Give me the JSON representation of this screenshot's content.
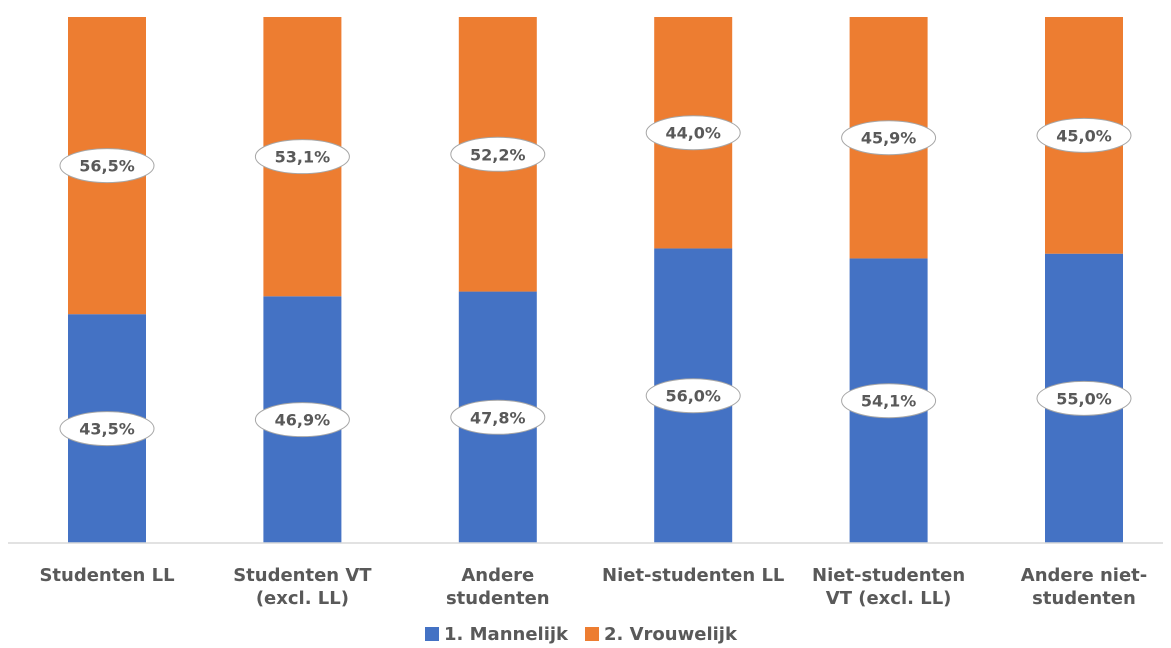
{
  "chart_data": {
    "type": "bar",
    "stacked": true,
    "percent_stacked": true,
    "categories": [
      [
        "Studenten LL"
      ],
      [
        "Studenten VT",
        "(excl. LL)"
      ],
      [
        "Andere",
        "studenten"
      ],
      [
        "Niet-studenten LL"
      ],
      [
        "Niet-studenten",
        "VT (excl. LL)"
      ],
      [
        "Andere niet-",
        "studenten"
      ]
    ],
    "series": [
      {
        "name": "1. Mannelijk",
        "color": "#4472C4",
        "values": [
          43.5,
          46.9,
          47.8,
          56.0,
          54.1,
          55.0
        ],
        "labels": [
          "43,5%",
          "46,9%",
          "47,8%",
          "56,0%",
          "54,1%",
          "55,0%"
        ]
      },
      {
        "name": "2. Vrouwelijk",
        "color": "#ED7D31",
        "values": [
          56.5,
          53.1,
          52.2,
          44.0,
          45.9,
          45.0
        ],
        "labels": [
          "56,5%",
          "53,1%",
          "52,2%",
          "44,0%",
          "45,9%",
          "45,0%"
        ]
      }
    ],
    "ylim": [
      0,
      100
    ],
    "grid": false,
    "legend": "bottom"
  }
}
